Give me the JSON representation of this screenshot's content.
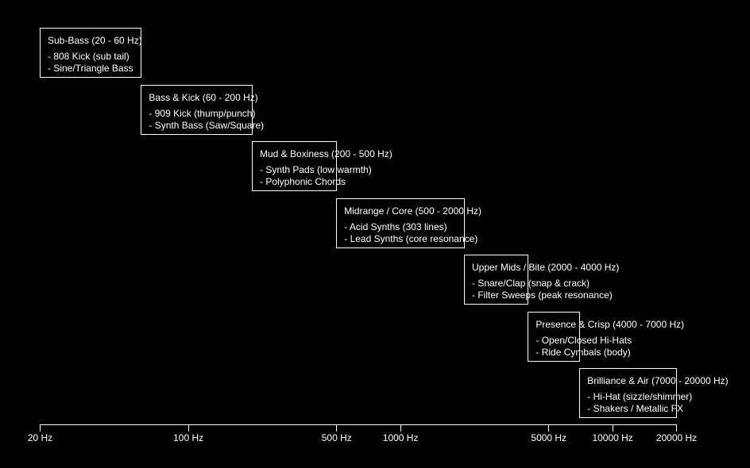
{
  "bands": [
    {
      "title": "Sub-Bass (20 - 60 Hz)",
      "items": [
        "- 808 Kick (sub tail)",
        "- Sine/Triangle Bass"
      ],
      "range_hz": [
        20,
        60
      ]
    },
    {
      "title": "Bass & Kick (60 - 200 Hz)",
      "items": [
        "- 909 Kick (thump/punch)",
        "- Synth Bass (Saw/Square)"
      ],
      "range_hz": [
        60,
        200
      ]
    },
    {
      "title": "Mud & Boxiness (200 - 500 Hz)",
      "items": [
        "- Synth Pads (low warmth)",
        "- Polyphonic Chords"
      ],
      "range_hz": [
        200,
        500
      ]
    },
    {
      "title": "Midrange / Core (500 - 2000 Hz)",
      "items": [
        "- Acid Synths (303 lines)",
        "- Lead Synths (core resonance)"
      ],
      "range_hz": [
        500,
        2000
      ]
    },
    {
      "title": "Upper Mids / Bite (2000 - 4000 Hz)",
      "items": [
        "- Snare/Clap (snap & crack)",
        "- Filter Sweeps (peak resonance)"
      ],
      "range_hz": [
        2000,
        4000
      ]
    },
    {
      "title": "Presence & Crisp (4000 - 7000 Hz)",
      "items": [
        "- Open/Closed Hi-Hats",
        "- Ride Cymbals (body)"
      ],
      "range_hz": [
        4000,
        7000
      ]
    },
    {
      "title": "Brilliance & Air (7000 - 20000 Hz)",
      "items": [
        "- Hi-Hat (sizzle/shimmer)",
        "- Shakers / Metallic FX"
      ],
      "range_hz": [
        7000,
        20000
      ]
    }
  ],
  "axis": {
    "scale": "log",
    "range_hz": [
      20,
      20000
    ],
    "ticks": [
      {
        "value": 20,
        "label": "20 Hz"
      },
      {
        "value": 100,
        "label": "100 Hz"
      },
      {
        "value": 500,
        "label": "500 Hz"
      },
      {
        "value": 1000,
        "label": "1000 Hz"
      },
      {
        "value": 5000,
        "label": "5000 Hz"
      },
      {
        "value": 10000,
        "label": "10000 Hz"
      },
      {
        "value": 20000,
        "label": "20000 Hz"
      }
    ]
  }
}
